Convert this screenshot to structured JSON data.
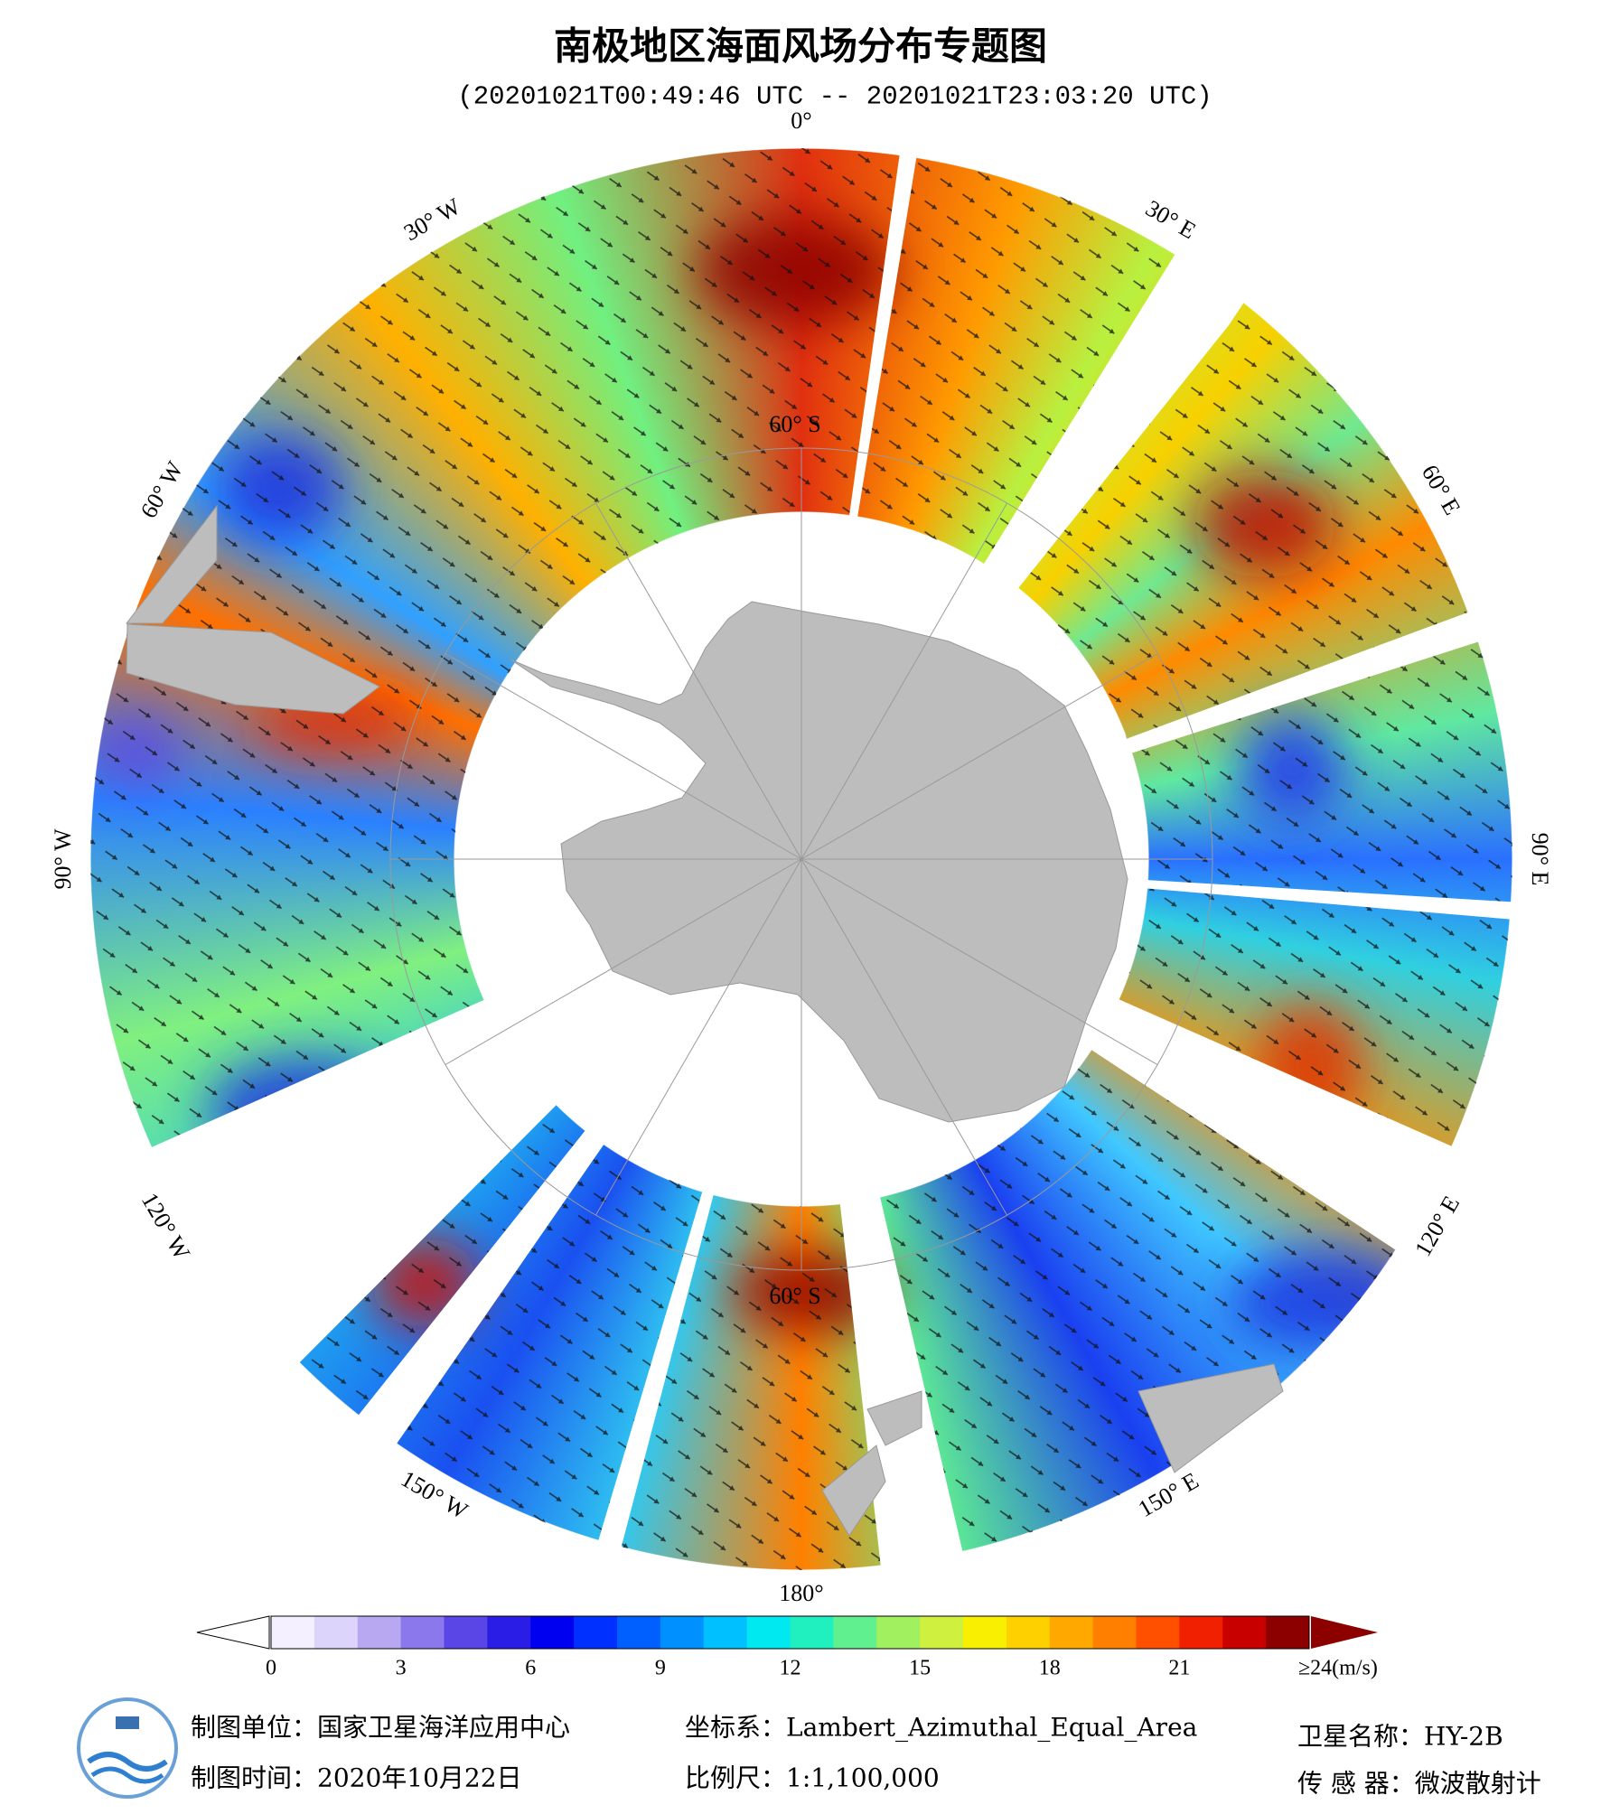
{
  "header": {
    "title": "南极地区海面风场分布专题图",
    "subtitle": "(20201021T00:49:46 UTC -- 20201021T23:03:20 UTC)"
  },
  "map": {
    "longitude_labels": [
      "0°",
      "30° E",
      "60° E",
      "90° E",
      "120° E",
      "150° E",
      "180°",
      "150° W",
      "120° W",
      "90° W",
      "60° W",
      "30° W"
    ],
    "latitude_label": "60° S"
  },
  "colorbar": {
    "range": [
      0,
      24
    ],
    "ticks": [
      0,
      3,
      6,
      9,
      12,
      15,
      18,
      21,
      {
        "value": 24,
        "label": "≥24(m/s)"
      }
    ],
    "colors": [
      "#f4f0ff",
      "#dcd4fa",
      "#b8a8f2",
      "#8a78ec",
      "#5a46e6",
      "#2a1ee6",
      "#0000f0",
      "#0030ff",
      "#0060ff",
      "#0090ff",
      "#00c0ff",
      "#00e8f0",
      "#20f0c0",
      "#60f090",
      "#a0f060",
      "#d0f040",
      "#f8f000",
      "#ffd000",
      "#ffa800",
      "#ff8000",
      "#ff5000",
      "#f02000",
      "#c80000",
      "#8c0000"
    ],
    "under_color": "#ffffff",
    "over_color": "#8c0000"
  },
  "footer": {
    "unit": "制图单位：国家卫星海洋应用中心",
    "date": "制图时间：2020年10月22日",
    "crs": "坐标系：Lambert_Azimuthal_Equal_Area",
    "scale": "比例尺：1:1,100,000",
    "satellite": "卫星名称：HY-2B",
    "sensor": "传 感 器：微波散射计"
  }
}
